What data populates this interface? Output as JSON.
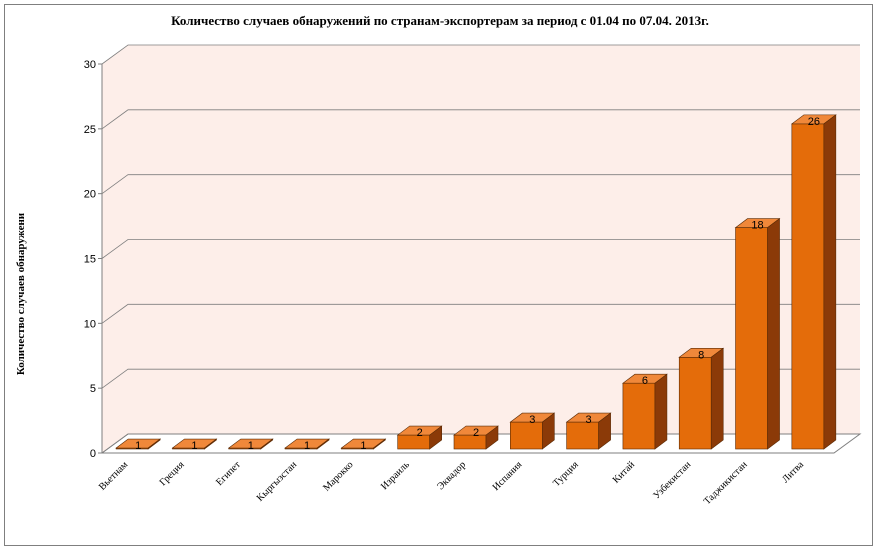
{
  "chart_data": {
    "type": "bar",
    "title": "Количество случаев обнаружений по странам-экспортерам за период с  01.04 по 07.04. 2013г.",
    "xlabel": "",
    "ylabel": "Количество случаев обнаружени",
    "ylim": [
      0,
      30
    ],
    "yticks": [
      "0",
      "5",
      "10",
      "15",
      "20",
      "25",
      "30"
    ],
    "grid": true,
    "categories": [
      "Вьетнам",
      "Греция",
      "Египет",
      "Кыргызстан",
      "Марокко",
      "Израиль",
      "Эквадор",
      "Испания",
      "Турция",
      "Китай",
      "Узбекистан",
      "Таджикистан",
      "Литва"
    ],
    "values": [
      1,
      1,
      1,
      1,
      1,
      2,
      2,
      3,
      3,
      6,
      8,
      18,
      26
    ],
    "data_labels": [
      "1",
      "1",
      "1",
      "1",
      "1",
      "2",
      "2",
      "3",
      "3",
      "6",
      "8",
      "18",
      "26"
    ],
    "colors": {
      "bar_front": "#e46c0a",
      "bar_top": "#f0883a",
      "bar_side": "#8b3a08",
      "wall": "#fdeee9",
      "grid": "#7f7f7f"
    }
  }
}
